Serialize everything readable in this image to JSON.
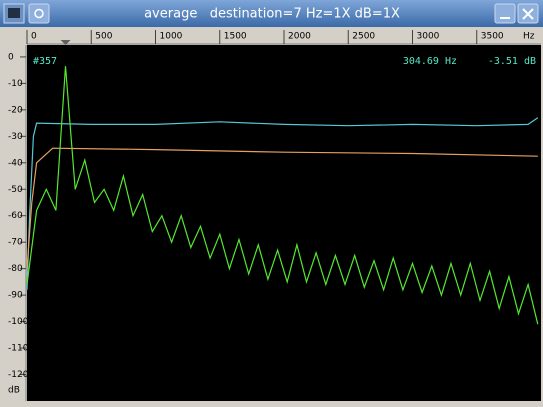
{
  "window": {
    "title": "average   destination=7 Hz=1X dB=1X"
  },
  "chart_data": {
    "type": "line",
    "xlabel": "Hz",
    "ylabel": "dB",
    "annotations": [
      "#357",
      "304.69 Hz",
      "-3.51 dB"
    ],
    "xlim": [
      0,
      4000
    ],
    "ylim": [
      4.5,
      -130
    ],
    "xticks": [
      0,
      500,
      1000,
      1500,
      2000,
      2500,
      3000,
      3500
    ],
    "yticks": [
      0,
      -10,
      -20,
      -30,
      -40,
      -50,
      -60,
      -70,
      -80,
      -90,
      -100,
      -110,
      -120
    ],
    "marker": 300,
    "series": [
      {
        "color": "#55c8d8",
        "x": [
          0,
          20,
          50,
          75,
          500,
          1000,
          1500,
          2000,
          2500,
          3000,
          3500,
          3900,
          3975
        ],
        "values": [
          -88,
          -60,
          -30,
          -25,
          -25.5,
          -25.5,
          -24.5,
          -25.5,
          -26,
          -25.5,
          -26,
          -25.5,
          -23
        ]
      },
      {
        "color": "#e8a060",
        "x": [
          0,
          37,
          75,
          200,
          1000,
          2000,
          3000,
          3975
        ],
        "values": [
          -80,
          -55,
          -40,
          -34.5,
          -35,
          -36,
          -36.5,
          -37.5
        ]
      },
      {
        "color": "#55e830",
        "x": [
          0,
          75,
          150,
          225,
          300,
          375,
          450,
          525,
          600,
          675,
          750,
          825,
          900,
          975,
          1050,
          1125,
          1200,
          1275,
          1350,
          1425,
          1500,
          1575,
          1650,
          1725,
          1800,
          1875,
          1950,
          2025,
          2100,
          2175,
          2250,
          2325,
          2400,
          2475,
          2550,
          2625,
          2700,
          2775,
          2850,
          2925,
          3000,
          3075,
          3150,
          3225,
          3300,
          3375,
          3450,
          3525,
          3600,
          3675,
          3750,
          3825,
          3900,
          3975
        ],
        "values": [
          -86,
          -58,
          -50,
          -58,
          -3.5,
          -50,
          -39,
          -55,
          -50,
          -58,
          -45,
          -60,
          -52,
          -66,
          -60,
          -70,
          -60,
          -72,
          -64,
          -76,
          -67,
          -80,
          -69,
          -82,
          -71,
          -84,
          -73,
          -85,
          -71,
          -85,
          -74,
          -86,
          -75,
          -86,
          -75,
          -87,
          -77,
          -88,
          -76,
          -88,
          -78,
          -89,
          -79,
          -90,
          -78,
          -90,
          -78,
          -92,
          -81,
          -95,
          -83,
          -97,
          -86,
          -101
        ]
      }
    ]
  }
}
